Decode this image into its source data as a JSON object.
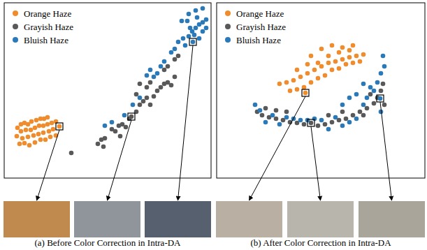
{
  "chart_data": [
    {
      "type": "scatter",
      "title": "(a) Before Color Correction in Intra-DA",
      "xlim": [
        0,
        296
      ],
      "ylim": [
        0,
        251
      ],
      "xticks": [],
      "yticks": [],
      "tick_labels": false,
      "legend": "upper left",
      "series": [
        {
          "name": "Orange Haze",
          "color": "#f08c2c",
          "x": [
            19,
            24,
            29,
            34,
            39,
            46,
            52,
            57,
            62,
            24,
            31,
            38,
            44,
            50,
            56,
            62,
            68,
            74,
            18,
            26,
            34,
            42,
            49,
            56,
            64,
            70,
            22,
            29,
            36,
            44,
            52,
            59,
            66,
            74,
            79
          ],
          "values": [
            72,
            77,
            79,
            77,
            81,
            83,
            85,
            85,
            87,
            67,
            69,
            69,
            72,
            75,
            75,
            77,
            79,
            81,
            60,
            57,
            59,
            61,
            63,
            65,
            67,
            70,
            49,
            50,
            47,
            51,
            55,
            55,
            59,
            61,
            74
          ]
        },
        {
          "name": "Grayish Haze",
          "color": "#595959",
          "x": [
            96,
            134,
            139,
            144,
            142,
            154,
            159,
            164,
            169,
            174,
            166,
            179,
            189,
            194,
            199,
            204,
            209,
            214,
            219,
            224,
            229,
            234,
            239,
            244,
            194,
            204,
            209,
            189,
            229,
            234,
            244,
            249,
            182
          ],
          "values": [
            36,
            49,
            55,
            57,
            45,
            70,
            67,
            75,
            77,
            73,
            60,
            85,
            95,
            105,
            110,
            115,
            105,
            117,
            125,
            130,
            135,
            137,
            133,
            145,
            135,
            130,
            137,
            120,
            155,
            160,
            170,
            175,
            88
          ]
        },
        {
          "name": "Bluish Haze",
          "color": "#2a7ab9",
          "x": [
            144,
            154,
            172,
            184,
            194,
            204,
            209,
            214,
            219,
            224,
            229,
            239,
            244,
            249,
            256,
            264,
            269,
            274,
            279,
            284,
            289,
            259,
            266,
            272,
            279,
            284,
            254,
            264,
            274,
            284,
            276,
            289,
            262,
            270
          ],
          "values": [
            75,
            80,
            90,
            105,
            115,
            147,
            155,
            145,
            150,
            160,
            167,
            180,
            185,
            195,
            200,
            203,
            210,
            215,
            220,
            223,
            227,
            190,
            215,
            205,
            200,
            210,
            225,
            235,
            240,
            243,
            230,
            215,
            225,
            195
          ]
        }
      ]
    },
    {
      "type": "scatter",
      "title": "(b) After Color Correction in Intra-DA",
      "xlim": [
        0,
        298
      ],
      "ylim": [
        0,
        251
      ],
      "xticks": [],
      "yticks": [],
      "tick_labels": false,
      "legend": "upper left",
      "series": [
        {
          "name": "Orange Haze",
          "color": "#f08c2c",
          "x": [
            90,
            100,
            110,
            120,
            130,
            140,
            150,
            160,
            170,
            180,
            190,
            200,
            210,
            105,
            115,
            125,
            135,
            145,
            155,
            165,
            175,
            185,
            195,
            205,
            115,
            130,
            145,
            160,
            175,
            190,
            135,
            150,
            165,
            180,
            195,
            127
          ],
          "values": [
            135,
            137,
            140,
            145,
            150,
            155,
            160,
            165,
            167,
            170,
            173,
            175,
            177,
            125,
            127,
            130,
            137,
            143,
            147,
            155,
            157,
            163,
            165,
            167,
            155,
            163,
            165,
            175,
            180,
            183,
            175,
            185,
            190,
            187,
            190,
            122
          ]
        },
        {
          "name": "Grayish Haze",
          "color": "#595959",
          "x": [
            58,
            65,
            75,
            85,
            95,
            105,
            115,
            125,
            145,
            155,
            165,
            175,
            185,
            195,
            205,
            215,
            225,
            230,
            235,
            238,
            70,
            85,
            100,
            160,
            180,
            210,
            220,
            240,
            135
          ],
          "values": [
            95,
            90,
            87,
            85,
            83,
            80,
            79,
            77,
            75,
            77,
            80,
            83,
            85,
            90,
            95,
            100,
            107,
            115,
            125,
            135,
            100,
            97,
            95,
            90,
            95,
            90,
            120,
            105,
            79
          ]
        },
        {
          "name": "Bluish Haze",
          "color": "#2a7ab9",
          "x": [
            55,
            62,
            70,
            80,
            90,
            100,
            110,
            120,
            130,
            140,
            150,
            160,
            170,
            180,
            190,
            200,
            210,
            215,
            220,
            225,
            230,
            235,
            240,
            238,
            180,
            190,
            200,
            210,
            235,
            234
          ],
          "values": [
            105,
            97,
            80,
            90,
            77,
            87,
            85,
            83,
            83,
            85,
            83,
            70,
            87,
            75,
            80,
            85,
            105,
            115,
            130,
            125,
            137,
            150,
            160,
            175,
            105,
            115,
            120,
            135,
            95,
            114
          ]
        }
      ]
    }
  ]
}
